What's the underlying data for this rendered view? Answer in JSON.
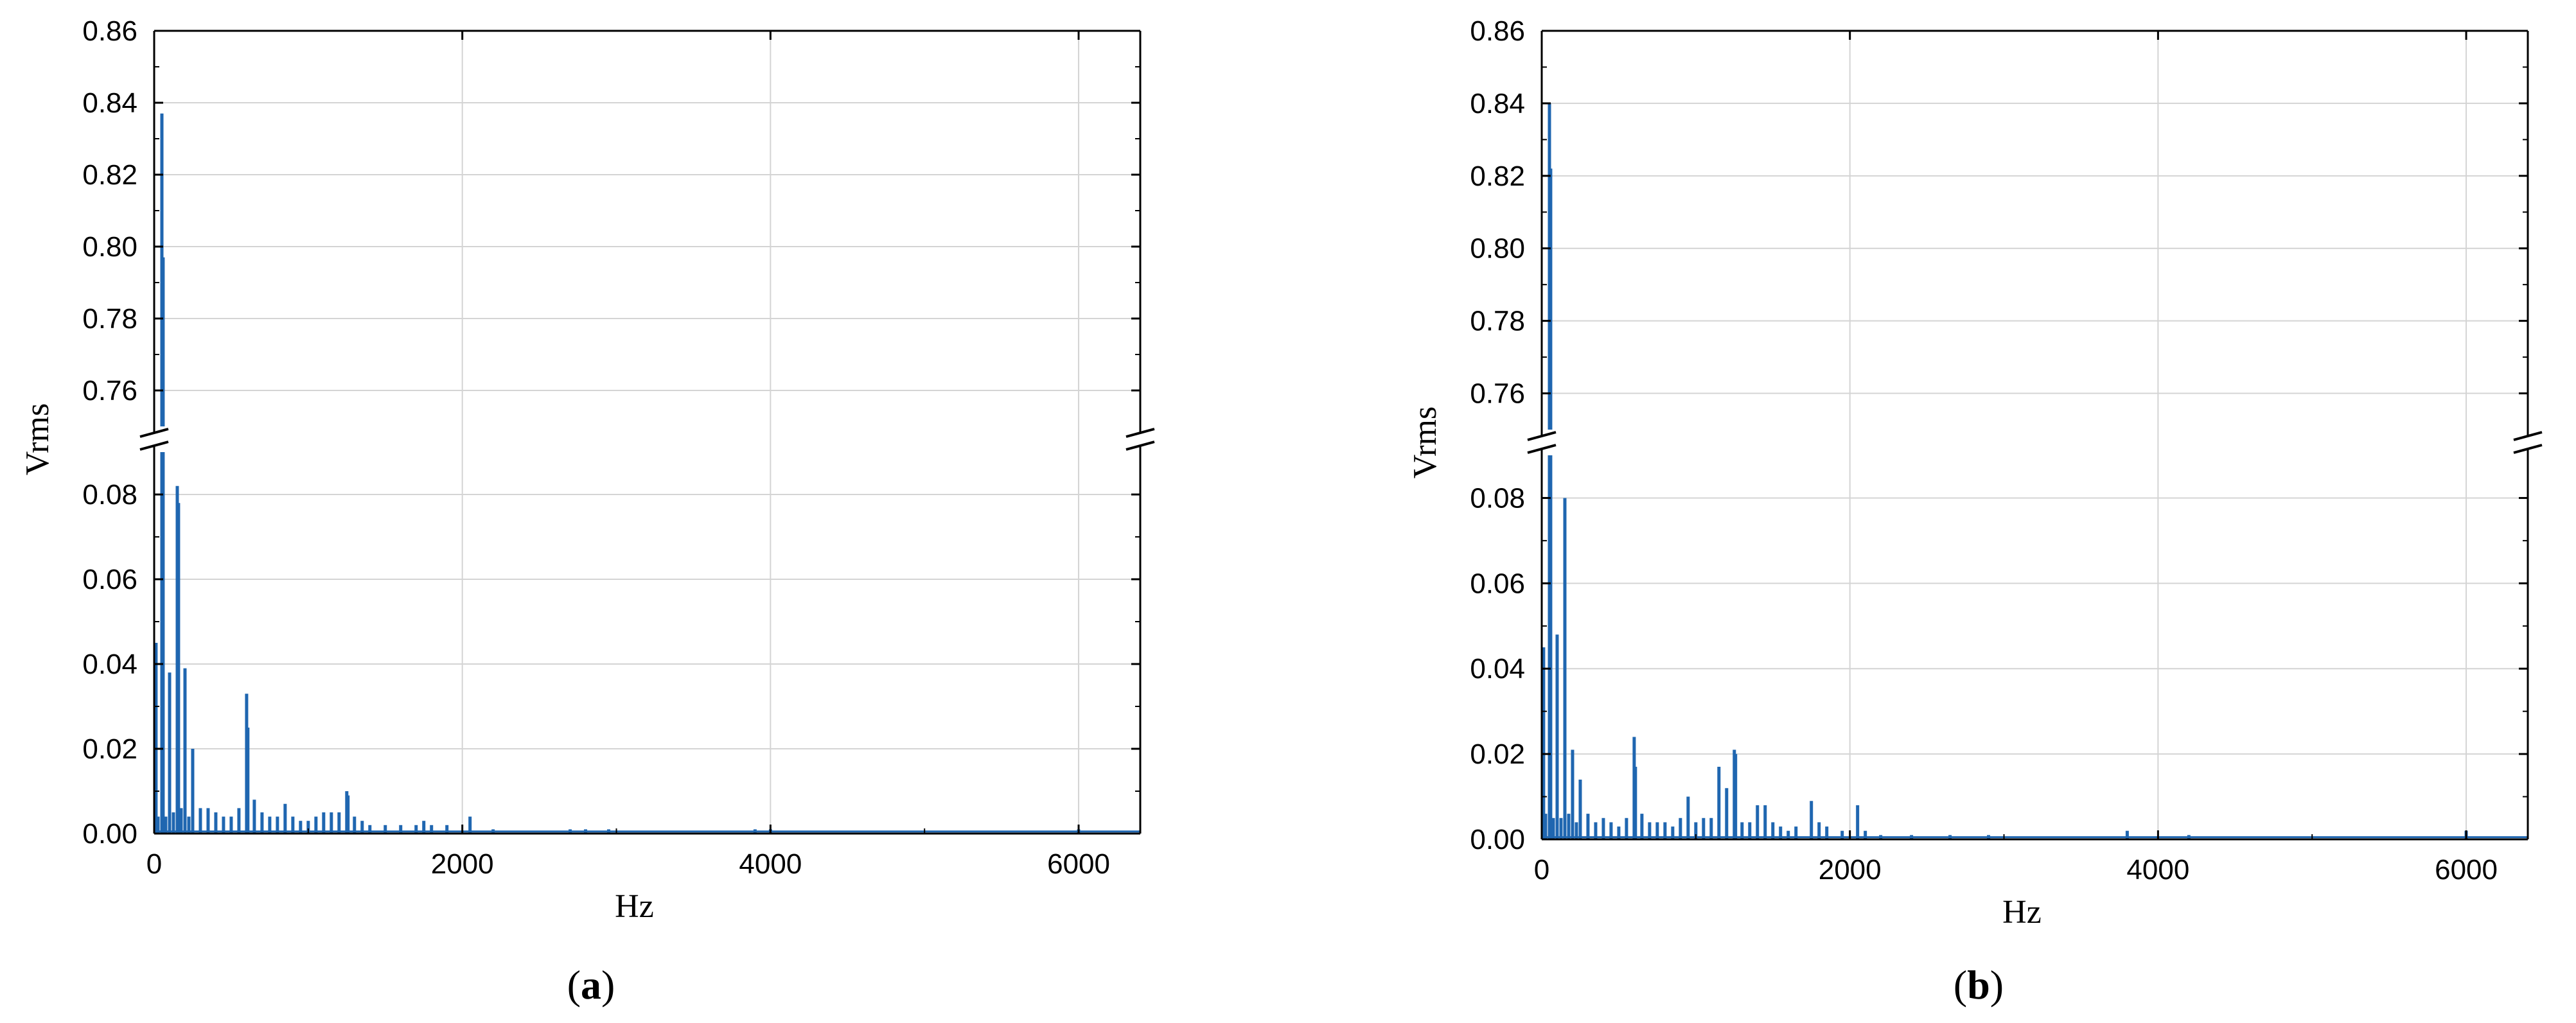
{
  "chart_data": [
    {
      "type": "line",
      "panel_label": "(a)",
      "xlabel": "Hz",
      "ylabel": "Vrms",
      "xlim": [
        0,
        6400
      ],
      "x_ticks": [
        0,
        2000,
        4000,
        6000
      ],
      "y_break": true,
      "y_lower_range": [
        0,
        0.09
      ],
      "y_upper_range": [
        0.75,
        0.86
      ],
      "y_lower_ticks": [
        "0.00",
        "0.02",
        "0.04",
        "0.06",
        "0.08"
      ],
      "y_upper_ticks": [
        "0.76",
        "0.78",
        "0.80",
        "0.82",
        "0.84",
        "0.86"
      ],
      "grid": true,
      "line_color": "#1f66b0",
      "peaks": [
        [
          12,
          0.045
        ],
        [
          25,
          0.004
        ],
        [
          50,
          0.837
        ],
        [
          58,
          0.797
        ],
        [
          75,
          0.004
        ],
        [
          100,
          0.038
        ],
        [
          125,
          0.005
        ],
        [
          150,
          0.082
        ],
        [
          158,
          0.078
        ],
        [
          175,
          0.006
        ],
        [
          200,
          0.039
        ],
        [
          225,
          0.004
        ],
        [
          250,
          0.02
        ],
        [
          300,
          0.006
        ],
        [
          350,
          0.006
        ],
        [
          400,
          0.005
        ],
        [
          450,
          0.004
        ],
        [
          500,
          0.004
        ],
        [
          550,
          0.006
        ],
        [
          600,
          0.033
        ],
        [
          608,
          0.025
        ],
        [
          650,
          0.008
        ],
        [
          700,
          0.005
        ],
        [
          750,
          0.004
        ],
        [
          800,
          0.004
        ],
        [
          850,
          0.007
        ],
        [
          900,
          0.004
        ],
        [
          950,
          0.003
        ],
        [
          1000,
          0.003
        ],
        [
          1050,
          0.004
        ],
        [
          1100,
          0.005
        ],
        [
          1150,
          0.005
        ],
        [
          1200,
          0.005
        ],
        [
          1250,
          0.01
        ],
        [
          1258,
          0.009
        ],
        [
          1300,
          0.004
        ],
        [
          1350,
          0.003
        ],
        [
          1400,
          0.002
        ],
        [
          1500,
          0.002
        ],
        [
          1600,
          0.002
        ],
        [
          1700,
          0.002
        ],
        [
          1750,
          0.003
        ],
        [
          1800,
          0.002
        ],
        [
          1900,
          0.002
        ],
        [
          2050,
          0.004
        ],
        [
          2200,
          0.001
        ],
        [
          2700,
          0.001
        ],
        [
          2800,
          0.001
        ],
        [
          2950,
          0.001
        ],
        [
          3900,
          0.001
        ],
        [
          4000,
          0.001
        ],
        [
          6000,
          0.001
        ]
      ]
    },
    {
      "type": "line",
      "panel_label": "(b)",
      "xlabel": "Hz",
      "ylabel": "Vrms",
      "xlim": [
        0,
        6400
      ],
      "x_ticks": [
        0,
        2000,
        4000,
        6000
      ],
      "y_break": true,
      "y_lower_range": [
        0,
        0.09
      ],
      "y_upper_range": [
        0.75,
        0.86
      ],
      "y_lower_ticks": [
        "0.00",
        "0.02",
        "0.04",
        "0.06",
        "0.08"
      ],
      "y_upper_ticks": [
        "0.76",
        "0.78",
        "0.80",
        "0.82",
        "0.84",
        "0.86"
      ],
      "grid": true,
      "line_color": "#1f66b0",
      "peaks": [
        [
          12,
          0.045
        ],
        [
          25,
          0.006
        ],
        [
          50,
          0.84
        ],
        [
          58,
          0.822
        ],
        [
          75,
          0.005
        ],
        [
          100,
          0.048
        ],
        [
          125,
          0.005
        ],
        [
          150,
          0.08
        ],
        [
          175,
          0.006
        ],
        [
          200,
          0.021
        ],
        [
          225,
          0.004
        ],
        [
          250,
          0.014
        ],
        [
          300,
          0.006
        ],
        [
          350,
          0.004
        ],
        [
          400,
          0.005
        ],
        [
          450,
          0.004
        ],
        [
          500,
          0.003
        ],
        [
          550,
          0.005
        ],
        [
          600,
          0.024
        ],
        [
          608,
          0.017
        ],
        [
          650,
          0.006
        ],
        [
          700,
          0.004
        ],
        [
          750,
          0.004
        ],
        [
          800,
          0.004
        ],
        [
          850,
          0.003
        ],
        [
          900,
          0.005
        ],
        [
          950,
          0.01
        ],
        [
          1000,
          0.004
        ],
        [
          1050,
          0.005
        ],
        [
          1100,
          0.005
        ],
        [
          1150,
          0.017
        ],
        [
          1200,
          0.012
        ],
        [
          1250,
          0.021
        ],
        [
          1258,
          0.02
        ],
        [
          1300,
          0.004
        ],
        [
          1350,
          0.004
        ],
        [
          1400,
          0.008
        ],
        [
          1450,
          0.008
        ],
        [
          1500,
          0.004
        ],
        [
          1550,
          0.003
        ],
        [
          1600,
          0.002
        ],
        [
          1650,
          0.003
        ],
        [
          1750,
          0.009
        ],
        [
          1800,
          0.004
        ],
        [
          1850,
          0.003
        ],
        [
          1950,
          0.002
        ],
        [
          2050,
          0.008
        ],
        [
          2100,
          0.002
        ],
        [
          2200,
          0.001
        ],
        [
          2400,
          0.001
        ],
        [
          2650,
          0.001
        ],
        [
          2900,
          0.001
        ],
        [
          3800,
          0.002
        ],
        [
          4200,
          0.001
        ],
        [
          6000,
          0.002
        ]
      ]
    }
  ]
}
